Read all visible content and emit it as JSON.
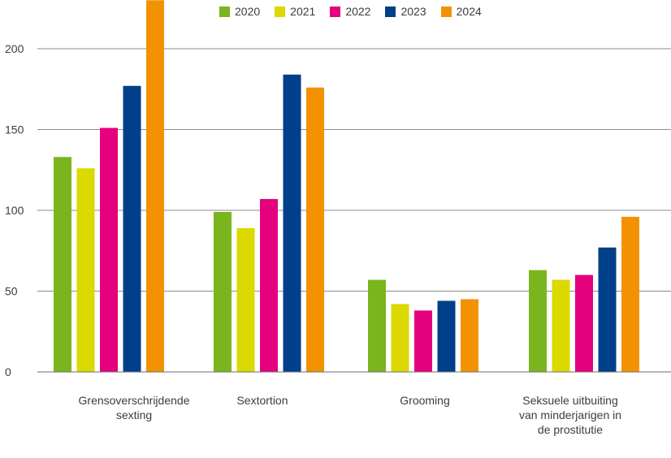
{
  "chart_data": {
    "type": "bar",
    "title": "",
    "xlabel": "",
    "ylabel": "",
    "ylim": [
      0,
      230
    ],
    "yticks": [
      0,
      50,
      100,
      150,
      200
    ],
    "grid": true,
    "legend_position": "top-center",
    "categories": [
      "Grensoverschrijdende sexting",
      "Sextortion",
      "Grooming",
      "Seksuele uitbuiting van minderjarigen in de prostitutie"
    ],
    "series": [
      {
        "name": "2020",
        "color": "#7ab51d",
        "values": [
          133,
          99,
          57,
          63
        ]
      },
      {
        "name": "2021",
        "color": "#dcd900",
        "values": [
          126,
          89,
          42,
          57
        ]
      },
      {
        "name": "2022",
        "color": "#e5007e",
        "values": [
          151,
          107,
          38,
          60
        ]
      },
      {
        "name": "2023",
        "color": "#003f8a",
        "values": [
          177,
          184,
          44,
          77
        ]
      },
      {
        "name": "2024",
        "color": "#f39200",
        "values": [
          230,
          176,
          45,
          96
        ]
      }
    ]
  }
}
